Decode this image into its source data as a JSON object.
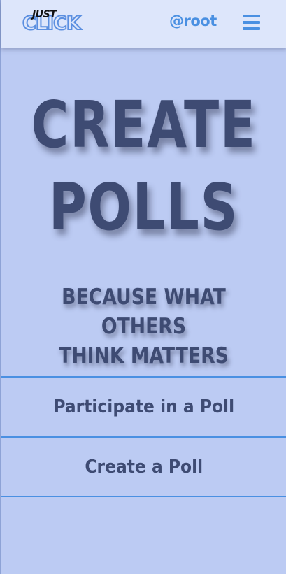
{
  "header": {
    "logo_top": "JUST",
    "logo_main": "CLICK",
    "user_handle": "@root",
    "menu_icon": "hamburger-icon"
  },
  "hero": {
    "title_line1": "CREATE",
    "title_line2": "POLLS",
    "tagline_line1": "BECAUSE WHAT OTHERS",
    "tagline_line2": "THINK MATTERS"
  },
  "actions": [
    {
      "label": "Participate in a Poll"
    },
    {
      "label": "Create a Poll"
    }
  ],
  "colors": {
    "background": "#bccbf3",
    "header_bg": "#dde6fb",
    "accent": "#4a90e2",
    "text_dark": "#3e4b73"
  }
}
